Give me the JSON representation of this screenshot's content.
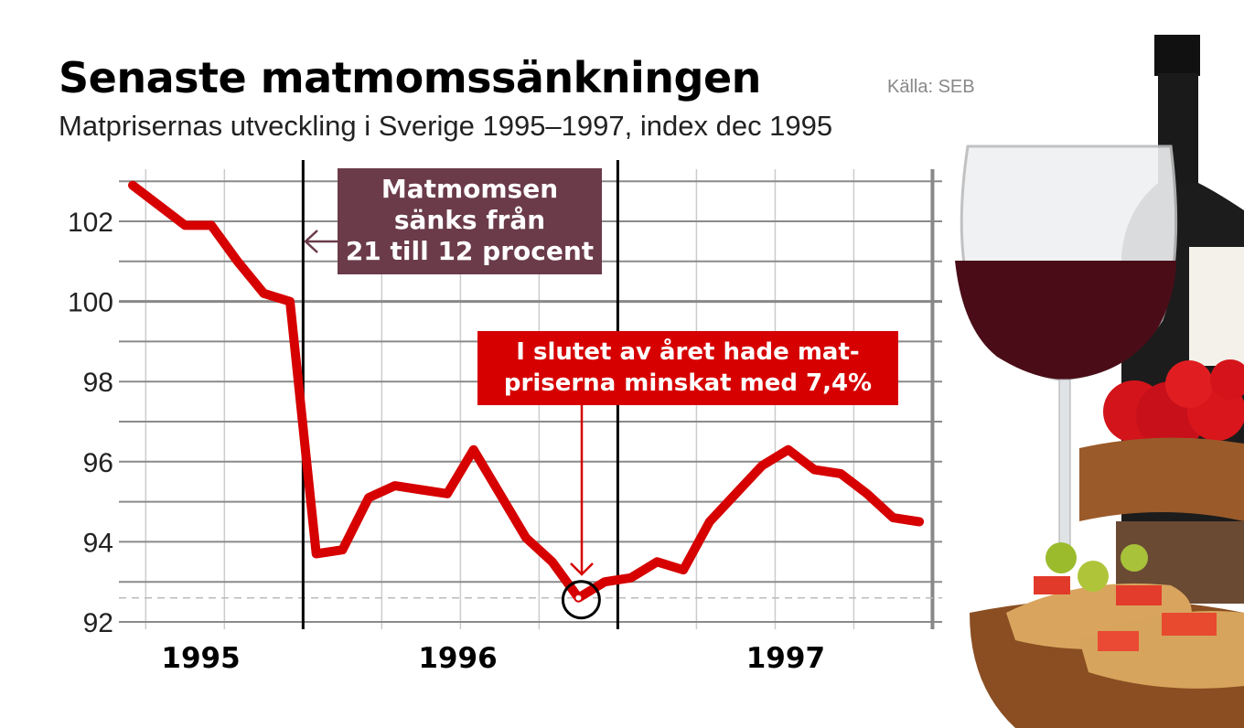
{
  "header": {
    "title": "Senaste matmomssänkningen",
    "subtitle": "Matprisernas utveckling i Sverige 1995–1997, index dec 1995",
    "source": "Källa: SEB"
  },
  "chart_data": {
    "type": "line",
    "title": "Senaste matmomssänkningen",
    "subtitle": "Matprisernas utveckling i Sverige 1995–1997, index dec 1995",
    "xlabel": "",
    "ylabel": "",
    "ylim": [
      92,
      103
    ],
    "yticks": [
      "92",
      "94",
      "96",
      "98",
      "100",
      "102"
    ],
    "year_labels": [
      "1995",
      "1996",
      "1997"
    ],
    "grid": true,
    "line_color": "#d60000",
    "x": [
      "1995-06",
      "1995-07",
      "1995-08",
      "1995-09",
      "1995-10",
      "1995-11",
      "1995-12",
      "1996-01",
      "1996-02",
      "1996-03",
      "1996-04",
      "1996-05",
      "1996-06",
      "1996-07",
      "1996-08",
      "1996-09",
      "1996-10",
      "1996-11",
      "1996-12",
      "1997-01",
      "1997-02",
      "1997-03",
      "1997-04",
      "1997-05",
      "1997-06",
      "1997-07",
      "1997-08",
      "1997-09",
      "1997-10",
      "1997-11",
      "1997-12"
    ],
    "values": [
      102.9,
      102.4,
      101.9,
      101.9,
      101.0,
      100.2,
      100.0,
      93.7,
      93.8,
      95.1,
      95.4,
      95.3,
      95.2,
      96.3,
      95.2,
      94.1,
      93.5,
      92.6,
      93.0,
      93.1,
      93.5,
      93.3,
      94.5,
      95.2,
      95.9,
      96.3,
      95.8,
      95.7,
      95.2,
      94.6,
      94.5
    ],
    "reference_line": 92.6,
    "annotations": [
      {
        "lines": [
          "Matmomsen",
          "sänks från",
          "21 till 12 procent"
        ],
        "color": "#6b3b4a",
        "points_to": "1996-01"
      },
      {
        "lines": [
          "I slutet av året hade mat-",
          "priserna minskat med 7,4%"
        ],
        "color": "#d60000",
        "points_to": "1996-11"
      }
    ]
  }
}
